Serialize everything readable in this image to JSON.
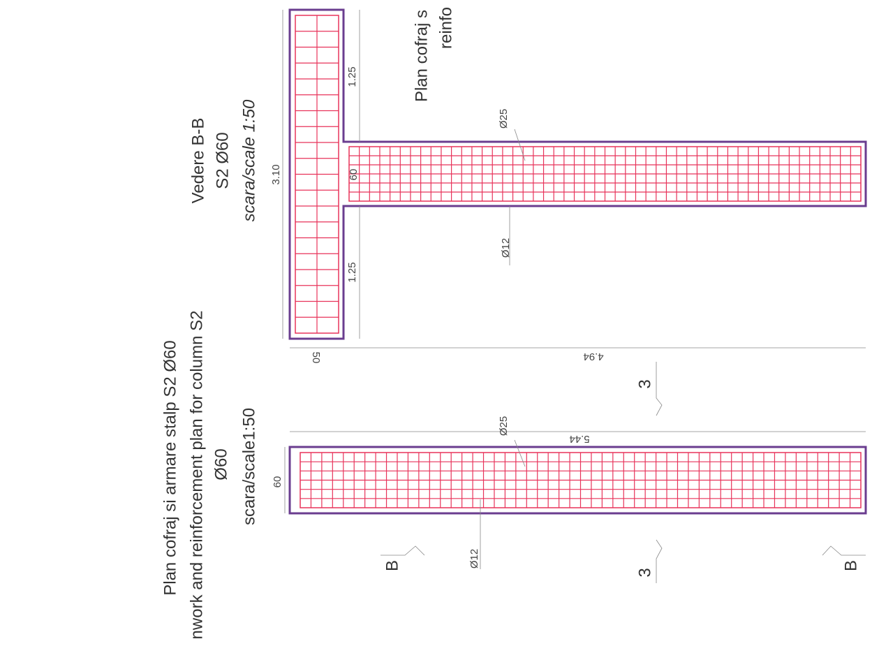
{
  "drawing": {
    "title_ro": "Plan cofraj si armare stalp S2 Ø60",
    "title_en": "nwork and reinforcement plan for column S2",
    "view_name": "Vedere B-B",
    "plan_diameter": "Ø60",
    "plan_scale": "scara/scale1:50",
    "view_label": "S2 Ø60",
    "view_scale": "scara/scale 1:50",
    "top_title_ro": "Plan cofraj s",
    "top_title_en": "reinfo",
    "dim_total_width": "3.10",
    "dim_flange_left": "1.25",
    "dim_flange_right": "1.25",
    "dim_web": "60",
    "dim_flange_thickness": "50",
    "dim_web_length": "4.94",
    "dim_column_length": "5.44",
    "dim_column_width": "60",
    "bar_main_view": "Ø25",
    "bar_stirrup_view": "Ø12",
    "bar_main_plan": "Ø25",
    "bar_stirrup_plan": "Ø12",
    "section_3_top": "3",
    "section_3_bottom": "3",
    "section_b_left": "B",
    "section_b_right": "B"
  }
}
